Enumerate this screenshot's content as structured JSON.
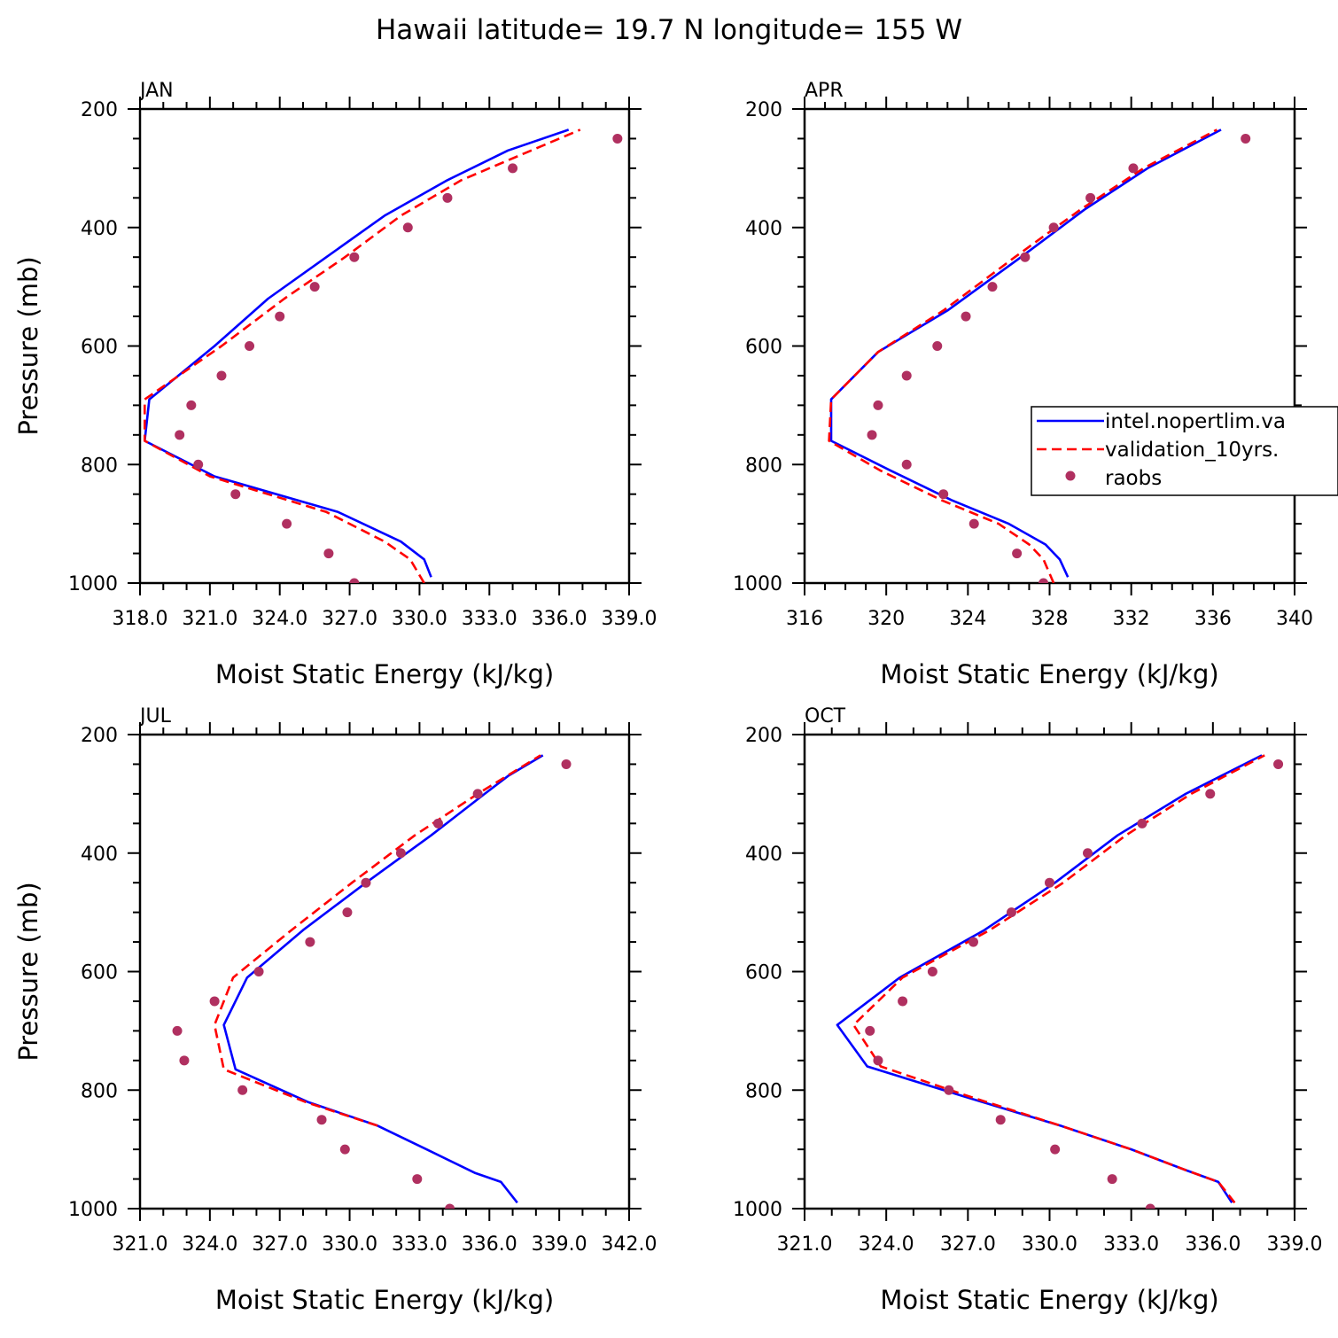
{
  "title": "Hawaii  latitude= 19.7 N longitude= 155 W",
  "colors": {
    "model": "#0000ff",
    "validation": "#ff0000",
    "raobs": "#b03060",
    "axis": "#000000"
  },
  "legend": {
    "entries": [
      {
        "name": "intel.nopertlim.va",
        "style": "solid-line"
      },
      {
        "name": "validation_10yrs.",
        "style": "dashed-line"
      },
      {
        "name": "raobs",
        "style": "dot"
      }
    ]
  },
  "chart_data": [
    {
      "type": "line",
      "panel": "JAN",
      "legend_placement": "none",
      "xlabel": "Moist Static Energy (kJ/kg)",
      "ylabel": "Pressure (mb)",
      "xlim": [
        318,
        339
      ],
      "ylim": [
        1000,
        200
      ],
      "xticks": [
        318,
        321,
        324,
        327,
        330,
        333,
        336,
        339
      ],
      "xtick_labels": [
        "318.0",
        "321.0",
        "324.0",
        "327.0",
        "330.0",
        "333.0",
        "336.0",
        "339.0"
      ],
      "yticks": [
        200,
        400,
        600,
        800,
        1000
      ],
      "series": [
        {
          "name": "intel.nopertlim.va",
          "p": [
            990,
            960,
            930,
            880,
            820,
            760,
            690,
            600,
            520,
            450,
            380,
            320,
            270,
            235
          ],
          "x": [
            330.5,
            330.2,
            329.2,
            326.5,
            321.2,
            318.2,
            318.4,
            321.2,
            323.5,
            326.0,
            328.5,
            331.2,
            333.8,
            336.4
          ]
        },
        {
          "name": "validation_10yrs.",
          "p": [
            1000,
            960,
            930,
            880,
            820,
            760,
            690,
            600,
            520,
            450,
            380,
            320,
            280,
            235
          ],
          "x": [
            330.2,
            329.6,
            328.5,
            326.0,
            321.0,
            318.2,
            318.2,
            321.5,
            324.2,
            326.8,
            329.2,
            331.8,
            334.2,
            336.9
          ]
        },
        {
          "name": "raobs",
          "p": [
            250,
            300,
            350,
            400,
            450,
            500,
            550,
            600,
            650,
            700,
            750,
            800,
            850,
            900,
            950,
            1000
          ],
          "x": [
            338.5,
            334.0,
            331.2,
            329.5,
            327.2,
            325.5,
            324.0,
            322.7,
            321.5,
            320.2,
            319.7,
            320.5,
            322.1,
            324.3,
            326.1,
            327.2
          ]
        }
      ]
    },
    {
      "type": "line",
      "panel": "APR",
      "legend_placement": "right",
      "xlabel": "Moist Static Energy (kJ/kg)",
      "ylabel": "",
      "xlim": [
        316,
        340
      ],
      "ylim": [
        1000,
        200
      ],
      "xticks": [
        316,
        320,
        324,
        328,
        332,
        336,
        340
      ],
      "xtick_labels": [
        "316",
        "320",
        "324",
        "328",
        "332",
        "336",
        "340"
      ],
      "yticks": [
        200,
        400,
        600,
        800,
        1000
      ],
      "series": [
        {
          "name": "intel.nopertlim.va",
          "p": [
            990,
            960,
            935,
            900,
            860,
            810,
            760,
            690,
            610,
            540,
            450,
            370,
            300,
            235
          ],
          "x": [
            328.9,
            328.5,
            327.8,
            326.0,
            323.2,
            320.2,
            317.3,
            317.3,
            319.6,
            323.0,
            326.6,
            329.7,
            332.8,
            336.4
          ]
        },
        {
          "name": "validation_10yrs.",
          "p": [
            1000,
            960,
            935,
            900,
            860,
            810,
            760,
            690,
            610,
            540,
            450,
            370,
            300,
            235
          ],
          "x": [
            328.2,
            327.7,
            327.0,
            325.5,
            322.7,
            319.7,
            317.2,
            317.3,
            319.6,
            322.8,
            326.3,
            329.5,
            332.6,
            336.2
          ]
        },
        {
          "name": "raobs",
          "p": [
            250,
            300,
            350,
            400,
            450,
            500,
            550,
            600,
            650,
            700,
            750,
            800,
            850,
            900,
            950,
            1000
          ],
          "x": [
            337.6,
            332.1,
            330.0,
            328.2,
            326.8,
            325.2,
            323.9,
            322.5,
            321.0,
            319.6,
            319.3,
            321.0,
            322.8,
            324.3,
            326.4,
            327.7
          ]
        }
      ]
    },
    {
      "type": "line",
      "panel": "JUL",
      "legend_placement": "none",
      "xlabel": "Moist Static Energy (kJ/kg)",
      "ylabel": "Pressure (mb)",
      "xlim": [
        321,
        342
      ],
      "ylim": [
        1000,
        200
      ],
      "xticks": [
        321,
        324,
        327,
        330,
        333,
        336,
        339,
        342
      ],
      "xtick_labels": [
        "321.0",
        "324.0",
        "327.0",
        "330.0",
        "333.0",
        "336.0",
        "339.0",
        "342.0"
      ],
      "yticks": [
        200,
        400,
        600,
        800,
        1000
      ],
      "series": [
        {
          "name": "intel.nopertlim.va",
          "p": [
            990,
            955,
            940,
            900,
            860,
            820,
            765,
            690,
            610,
            530,
            450,
            370,
            300,
            270,
            235
          ],
          "x": [
            337.2,
            336.5,
            335.4,
            333.3,
            331.2,
            328.2,
            325.1,
            324.6,
            325.6,
            328.0,
            330.7,
            333.5,
            335.8,
            336.8,
            338.3
          ]
        },
        {
          "name": "validation_10yrs.",
          "p": [
            860,
            820,
            765,
            690,
            610,
            530,
            450,
            370,
            300,
            235
          ],
          "x": [
            331.2,
            328.1,
            324.6,
            324.2,
            325.0,
            327.5,
            330.1,
            332.8,
            335.5,
            338.2
          ]
        },
        {
          "name": "raobs",
          "p": [
            250,
            300,
            350,
            400,
            450,
            500,
            550,
            600,
            650,
            700,
            750,
            800,
            850,
            900,
            950,
            1000
          ],
          "x": [
            339.3,
            335.5,
            333.8,
            332.2,
            330.7,
            329.9,
            328.3,
            326.1,
            324.2,
            322.6,
            322.9,
            325.4,
            328.8,
            329.8,
            332.9,
            334.3
          ]
        }
      ]
    },
    {
      "type": "line",
      "panel": "OCT",
      "legend_placement": "none",
      "xlabel": "Moist Static Energy (kJ/kg)",
      "ylabel": "",
      "xlim": [
        321,
        339
      ],
      "ylim": [
        1000,
        200
      ],
      "xticks": [
        321,
        324,
        327,
        330,
        333,
        336,
        339
      ],
      "xtick_labels": [
        "321.0",
        "324.0",
        "327.0",
        "330.0",
        "333.0",
        "336.0",
        "339.0"
      ],
      "yticks": [
        200,
        400,
        600,
        800,
        1000
      ],
      "series": [
        {
          "name": "intel.nopertlim.va",
          "p": [
            990,
            955,
            935,
            900,
            860,
            810,
            760,
            690,
            610,
            530,
            450,
            370,
            300,
            235
          ],
          "x": [
            336.7,
            336.2,
            335.0,
            333.0,
            330.4,
            326.8,
            323.3,
            322.2,
            324.5,
            327.6,
            330.2,
            332.5,
            335.0,
            337.8
          ]
        },
        {
          "name": "validation_10yrs.",
          "p": [
            990,
            955,
            935,
            900,
            860,
            810,
            760,
            690,
            610,
            530,
            450,
            370,
            300,
            235
          ],
          "x": [
            336.8,
            336.2,
            335.0,
            333.0,
            330.4,
            327.0,
            323.8,
            322.8,
            324.6,
            327.8,
            330.5,
            332.8,
            335.2,
            337.9
          ]
        },
        {
          "name": "raobs",
          "p": [
            250,
            300,
            350,
            400,
            450,
            500,
            550,
            600,
            650,
            700,
            750,
            800,
            850,
            900,
            950,
            1000
          ],
          "x": [
            338.4,
            335.9,
            333.4,
            331.4,
            330.0,
            328.6,
            327.2,
            325.7,
            324.6,
            323.4,
            323.7,
            326.3,
            328.2,
            330.2,
            332.3,
            333.7
          ]
        }
      ]
    }
  ]
}
